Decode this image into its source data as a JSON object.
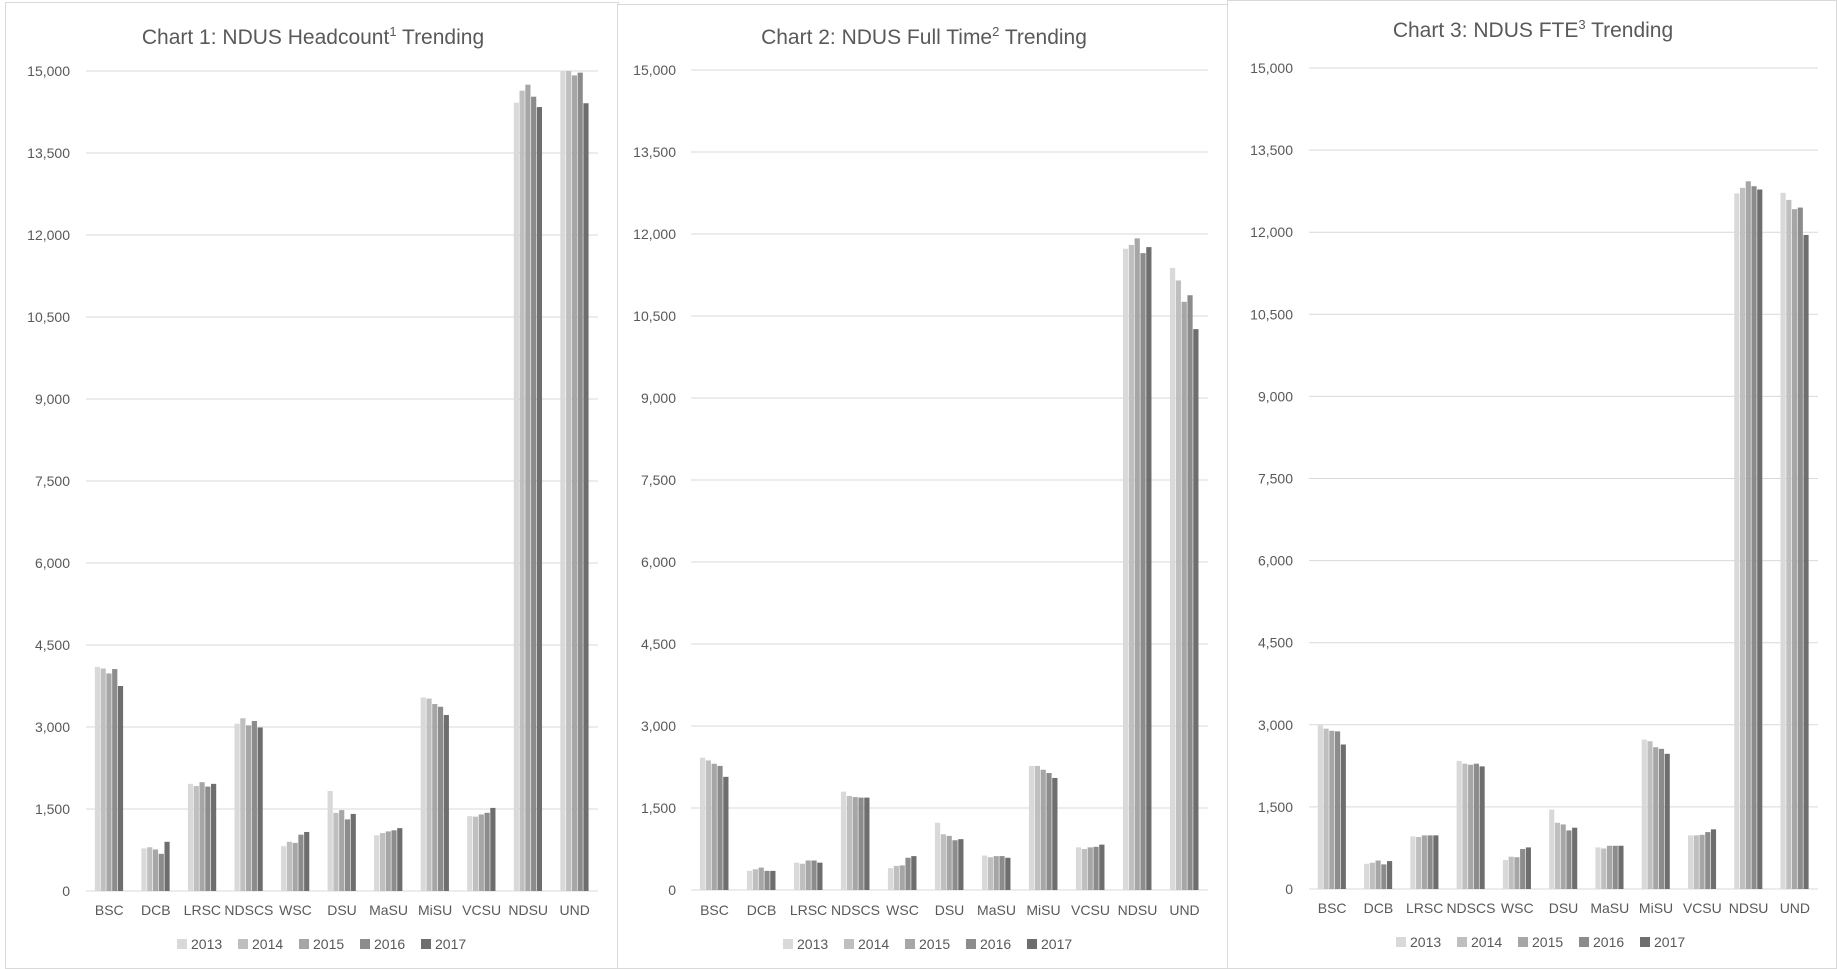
{
  "colors": {
    "series": [
      "#d9d9d9",
      "#bfbfbf",
      "#a6a6a6",
      "#8c8c8c",
      "#6e6e6e"
    ],
    "grid": "#d9d9d9",
    "text": "#595959",
    "border": "#d9d9d9"
  },
  "chart_data": [
    {
      "type": "bar",
      "title_main": "Chart 1: NDUS Headcount",
      "title_sup": "1",
      "title_tail": " Trending",
      "categories": [
        "BSC",
        "DCB",
        "LRSC",
        "NDSCS",
        "WSC",
        "DSU",
        "MaSU",
        "MiSU",
        "VCSU",
        "NDSU",
        "UND"
      ],
      "ylim": [
        0,
        15000
      ],
      "yticks": [
        0,
        1500,
        3000,
        4500,
        6000,
        7500,
        9000,
        10500,
        12000,
        13500,
        15000
      ],
      "ytick_labels": [
        "0",
        "1,500",
        "3,000",
        "4,500",
        "6,000",
        "7,500",
        "9,000",
        "10,500",
        "12,000",
        "13,500",
        "15,000"
      ],
      "grid": true,
      "legend_position": "bottom",
      "series": [
        {
          "name": "2013",
          "values": [
            4100,
            780,
            1960,
            3060,
            820,
            1830,
            1020,
            3540,
            1370,
            14420,
            15000
          ]
        },
        {
          "name": "2014",
          "values": [
            4070,
            800,
            1920,
            3160,
            900,
            1430,
            1060,
            3520,
            1360,
            14640,
            15000
          ]
        },
        {
          "name": "2015",
          "values": [
            3980,
            760,
            1990,
            3030,
            880,
            1480,
            1090,
            3420,
            1400,
            14750,
            14920
          ]
        },
        {
          "name": "2016",
          "values": [
            4060,
            680,
            1910,
            3110,
            1030,
            1310,
            1110,
            3370,
            1430,
            14530,
            14970
          ]
        },
        {
          "name": "2017",
          "values": [
            3750,
            900,
            1960,
            2990,
            1080,
            1410,
            1150,
            3220,
            1520,
            14340,
            14410
          ]
        }
      ]
    },
    {
      "type": "bar",
      "title_main": "Chart 2: NDUS Full Time",
      "title_sup": "2",
      "title_tail": " Trending",
      "categories": [
        "BSC",
        "DCB",
        "LRSC",
        "NDSCS",
        "WSC",
        "DSU",
        "MaSU",
        "MiSU",
        "VCSU",
        "NDSU",
        "UND"
      ],
      "ylim": [
        0,
        15000
      ],
      "yticks": [
        0,
        1500,
        3000,
        4500,
        6000,
        7500,
        9000,
        10500,
        12000,
        13500,
        15000
      ],
      "ytick_labels": [
        "0",
        "1,500",
        "3,000",
        "4,500",
        "6,000",
        "7,500",
        "9,000",
        "10,500",
        "12,000",
        "13,500",
        "15,000"
      ],
      "grid": true,
      "legend_position": "bottom",
      "series": [
        {
          "name": "2013",
          "values": [
            2420,
            350,
            500,
            1800,
            400,
            1230,
            630,
            2270,
            780,
            11730,
            11380
          ]
        },
        {
          "name": "2014",
          "values": [
            2370,
            380,
            480,
            1720,
            440,
            1020,
            600,
            2270,
            750,
            11800,
            11150
          ]
        },
        {
          "name": "2015",
          "values": [
            2310,
            410,
            540,
            1700,
            450,
            990,
            620,
            2200,
            780,
            11920,
            10760
          ]
        },
        {
          "name": "2016",
          "values": [
            2270,
            350,
            540,
            1690,
            590,
            910,
            620,
            2140,
            790,
            11650,
            10880
          ]
        },
        {
          "name": "2017",
          "values": [
            2070,
            350,
            500,
            1690,
            620,
            930,
            590,
            2050,
            830,
            11760,
            10260
          ]
        }
      ]
    },
    {
      "type": "bar",
      "title_main": "Chart 3: NDUS FTE",
      "title_sup": "3",
      "title_tail": " Trending",
      "categories": [
        "BSC",
        "DCB",
        "LRSC",
        "NDSCS",
        "WSC",
        "DSU",
        "MaSU",
        "MiSU",
        "VCSU",
        "NDSU",
        "UND"
      ],
      "ylim": [
        0,
        15000
      ],
      "yticks": [
        0,
        1500,
        3000,
        4500,
        6000,
        7500,
        9000,
        10500,
        12000,
        13500,
        15000
      ],
      "ytick_labels": [
        "0",
        "1,500",
        "3,000",
        "4,500",
        "6,000",
        "7,500",
        "9,000",
        "10,500",
        "12,000",
        "13,500",
        "15,000"
      ],
      "grid": true,
      "legend_position": "bottom",
      "series": [
        {
          "name": "2013",
          "values": [
            2990,
            460,
            960,
            2340,
            530,
            1450,
            760,
            2730,
            980,
            12710,
            12720
          ]
        },
        {
          "name": "2014",
          "values": [
            2930,
            480,
            950,
            2290,
            590,
            1210,
            740,
            2700,
            980,
            12810,
            12590
          ]
        },
        {
          "name": "2015",
          "values": [
            2890,
            520,
            980,
            2270,
            580,
            1180,
            790,
            2590,
            990,
            12930,
            12420
          ]
        },
        {
          "name": "2016",
          "values": [
            2880,
            450,
            980,
            2290,
            730,
            1070,
            790,
            2560,
            1040,
            12840,
            12450
          ]
        },
        {
          "name": "2017",
          "values": [
            2640,
            510,
            980,
            2240,
            760,
            1120,
            790,
            2470,
            1090,
            12780,
            11950
          ]
        }
      ]
    }
  ]
}
